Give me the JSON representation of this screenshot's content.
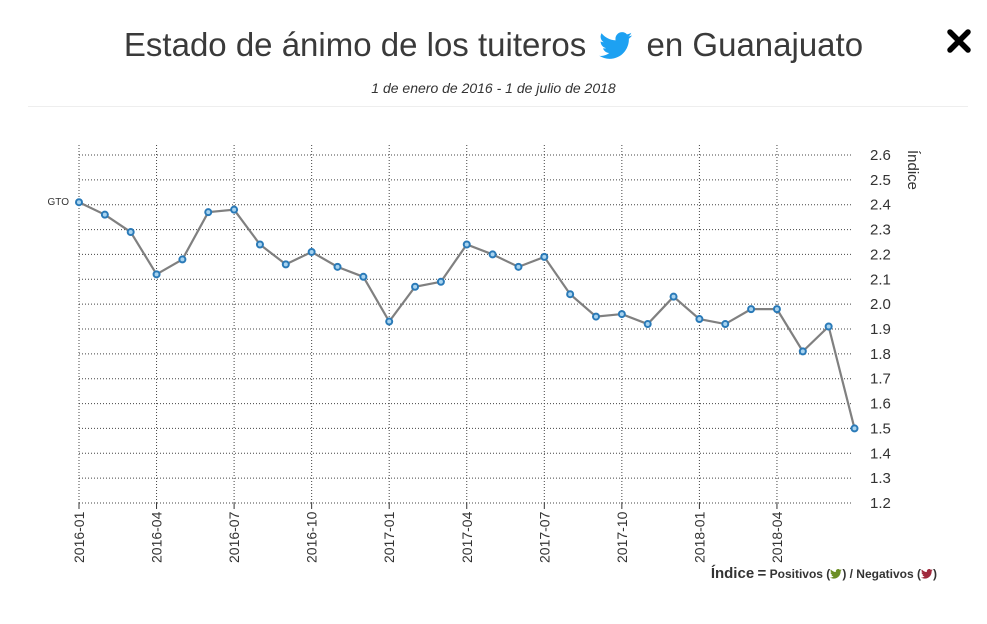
{
  "header": {
    "title_part1": "Estado de ánimo de los tuiteros",
    "title_part2": "en Guanajuato",
    "subtitle": "1 de enero de 2016 - 1 de julio de 2018",
    "twitter_color": "#1da1f2",
    "close_icon": "close-icon"
  },
  "legend": {
    "index_label": "Índice",
    "equals": "=",
    "positive_label": "Positivos (",
    "separator": ") / Negativos (",
    "closing": ")",
    "positive_color": "#6b8e23",
    "negative_color": "#a0283c"
  },
  "chart_data": {
    "type": "line",
    "ylabel": "Índice",
    "ylim": [
      1.2,
      2.6
    ],
    "yticks": [
      "2.6",
      "2.5",
      "2.4",
      "2.3",
      "2.2",
      "2.1",
      "2.0",
      "1.9",
      "1.8",
      "1.7",
      "1.6",
      "1.5",
      "1.4",
      "1.3",
      "1.2"
    ],
    "xticks": [
      "2016-01",
      "2016-04",
      "2016-07",
      "2016-10",
      "2017-01",
      "2017-04",
      "2017-07",
      "2017-10",
      "2018-01",
      "2018-04"
    ],
    "x": [
      "2016-01",
      "2016-02",
      "2016-03",
      "2016-04",
      "2016-05",
      "2016-06",
      "2016-07",
      "2016-08",
      "2016-09",
      "2016-10",
      "2016-11",
      "2016-12",
      "2017-01",
      "2017-02",
      "2017-03",
      "2017-04",
      "2017-05",
      "2017-06",
      "2017-07",
      "2017-08",
      "2017-09",
      "2017-10",
      "2017-11",
      "2017-12",
      "2018-01",
      "2018-02",
      "2018-03",
      "2018-04",
      "2018-05",
      "2018-06",
      "2018-07"
    ],
    "series": [
      {
        "name": "GTO",
        "color": "#808080",
        "marker_color": "#2a7ab8",
        "values": [
          2.41,
          2.36,
          2.29,
          2.12,
          2.18,
          2.37,
          2.38,
          2.24,
          2.16,
          2.21,
          2.15,
          2.11,
          1.93,
          2.07,
          2.09,
          2.24,
          2.2,
          2.15,
          2.19,
          2.04,
          1.95,
          1.96,
          1.92,
          2.03,
          1.94,
          1.92,
          1.98,
          1.98,
          1.81,
          1.91,
          1.5
        ]
      }
    ],
    "grid": true
  }
}
